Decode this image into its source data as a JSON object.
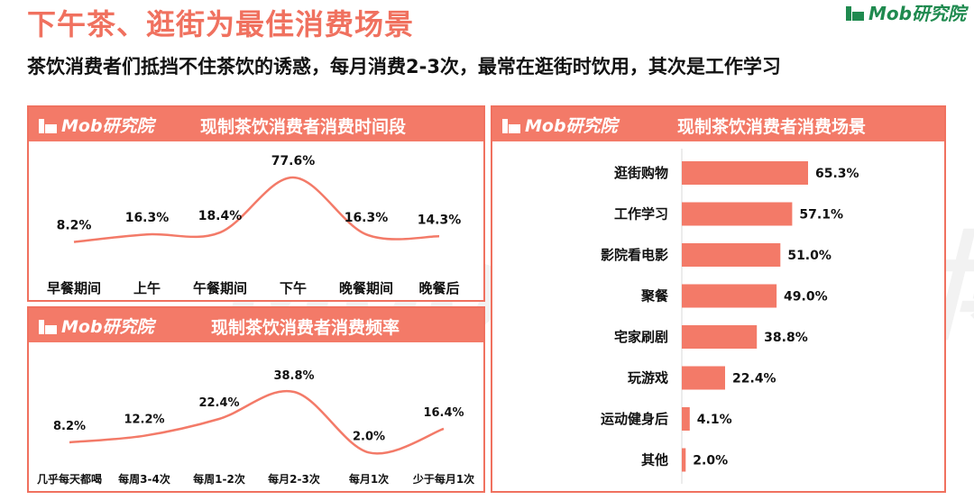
{
  "page": {
    "title": "下午茶、逛街为最佳消费场景",
    "subtitle": "茶饮消费者们抵挡不住茶饮的诱惑，每月消费2-3次，最常在逛街时饮用，其次是工作学习",
    "logo_text": "Mob研究院",
    "watermark_text": "MobTech袤博"
  },
  "colors": {
    "accent": "#f0715f",
    "bar": "#f37a68",
    "brand_green": "#1f8a4f"
  },
  "panels": {
    "time": {
      "logo_text": "Mob研究院",
      "title": "现制茶饮消费者消费时间段"
    },
    "freq": {
      "logo_text": "Mob研究院",
      "title": "现制茶饮消费者消费频率"
    },
    "scene": {
      "logo_text": "Mob研究院",
      "title": "现制茶饮消费者消费场景"
    }
  },
  "chart_data": [
    {
      "type": "line",
      "title": "现制茶饮消费者消费时间段",
      "categories": [
        "早餐期间",
        "上午",
        "午餐期间",
        "下午",
        "晚餐期间",
        "晚餐后"
      ],
      "values": [
        8.2,
        16.3,
        18.4,
        77.6,
        16.3,
        14.3
      ],
      "labels": [
        "8.2%",
        "16.3%",
        "18.4%",
        "77.6%",
        "16.3%",
        "14.3%"
      ],
      "unit": "%"
    },
    {
      "type": "line",
      "title": "现制茶饮消费者消费频率",
      "categories": [
        "几乎每天都喝",
        "每周3-4次",
        "每周1-2次",
        "每月2-3次",
        "每月1次",
        "少于每月1次"
      ],
      "values": [
        8.2,
        12.2,
        22.4,
        38.8,
        2.0,
        16.4
      ],
      "labels": [
        "8.2%",
        "12.2%",
        "22.4%",
        "38.8%",
        "2.0%",
        "16.4%"
      ],
      "unit": "%"
    },
    {
      "type": "bar",
      "orientation": "horizontal",
      "title": "现制茶饮消费者消费场景",
      "categories": [
        "逛街购物",
        "工作学习",
        "影院看电影",
        "聚餐",
        "宅家刷剧",
        "玩游戏",
        "运动健身后",
        "其他"
      ],
      "values": [
        65.3,
        57.1,
        51.0,
        49.0,
        38.8,
        22.4,
        4.1,
        2.0
      ],
      "labels": [
        "65.3%",
        "57.1%",
        "51.0%",
        "49.0%",
        "38.8%",
        "22.4%",
        "4.1%",
        "2.0%"
      ],
      "unit": "%"
    }
  ]
}
